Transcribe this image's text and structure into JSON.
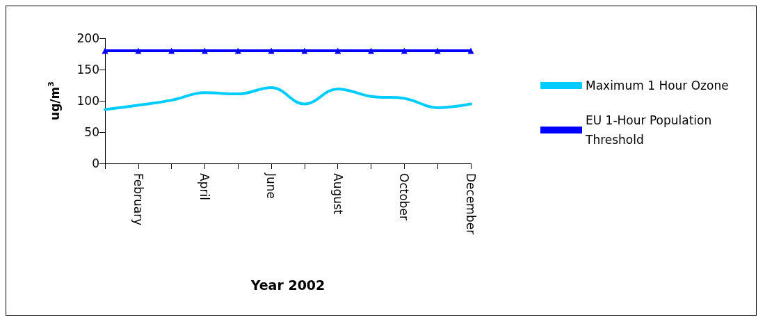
{
  "chart_data": {
    "type": "line",
    "xlabel": "Year 2002",
    "ylabel": "ug/m$^{3}$",
    "categories": [
      null,
      "February",
      null,
      "April",
      null,
      "June",
      null,
      "August",
      null,
      "October",
      null,
      "December"
    ],
    "series": [
      {
        "name": "Maximum 1 Hour Ozone",
        "color": "#00ccff",
        "marker": "none",
        "values": [
          86,
          93,
          101,
          113,
          111,
          121,
          95,
          119,
          107,
          104,
          89,
          95
        ]
      },
      {
        "name": "EU 1-Hour Population Threshold",
        "color": "#0000ff",
        "marker": "triangle",
        "values": [
          180,
          180,
          180,
          180,
          180,
          180,
          180,
          180,
          180,
          180,
          180,
          180
        ]
      }
    ],
    "ylim": [
      0,
      200
    ],
    "yticks": [
      0,
      50,
      100,
      150,
      200
    ],
    "grid": false,
    "legend": "right"
  }
}
